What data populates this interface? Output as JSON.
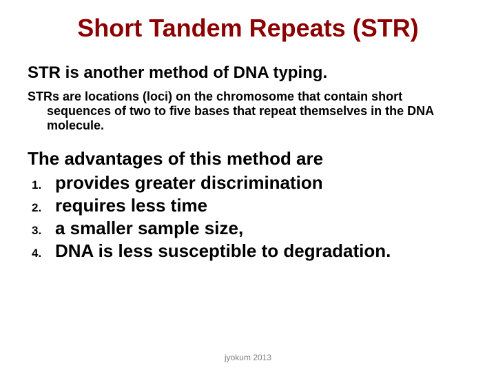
{
  "title": {
    "text": "Short Tandem Repeats (STR)",
    "color": "#8b0000",
    "fontsize": 36
  },
  "subtitle": {
    "text": "STR is another method of DNA typing.",
    "color": "#000000",
    "fontsize": 24
  },
  "definition": {
    "text": "STRs are locations (loci) on the chromosome that contain short sequences of two to five bases that repeat themselves in the DNA molecule.",
    "color": "#000000",
    "fontsize": 18
  },
  "advantages": {
    "heading": "The advantages of this method are",
    "heading_fontsize": 26,
    "heading_color": "#000000",
    "items": [
      {
        "num": "1.",
        "text": "provides greater discrimination"
      },
      {
        "num": "2.",
        "text": "requires less time"
      },
      {
        "num": "3.",
        "text": "a smaller sample size,"
      },
      {
        "num": "4.",
        "text": "DNA is less susceptible to degradation."
      }
    ],
    "item_fontsize": 26,
    "num_fontsize": 17,
    "item_color": "#000000"
  },
  "footer": {
    "text": "jyokum 2013",
    "color": "#808080",
    "fontsize": 12
  },
  "background_color": "#ffffff"
}
